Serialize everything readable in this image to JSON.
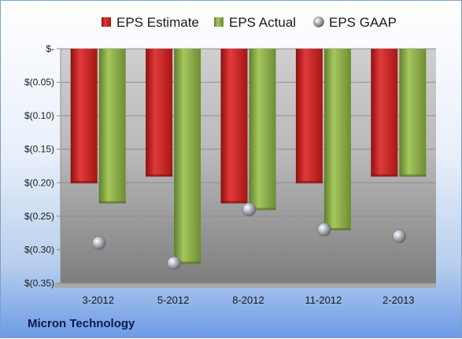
{
  "company": "Micron Technology",
  "chart_data": {
    "type": "bar",
    "categories": [
      "3-2012",
      "5-2012",
      "8-2012",
      "11-2012",
      "2-2013"
    ],
    "series": [
      {
        "name": "EPS Estimate",
        "kind": "bar",
        "color": "#cc2222",
        "values": [
          -0.2,
          -0.19,
          -0.23,
          -0.2,
          -0.19
        ]
      },
      {
        "name": "EPS Actual",
        "kind": "bar",
        "color": "#8cb04a",
        "values": [
          -0.23,
          -0.32,
          -0.24,
          -0.27,
          -0.19
        ]
      },
      {
        "name": "EPS GAAP",
        "kind": "marker",
        "color": "#9a9fa8",
        "values": [
          -0.29,
          -0.32,
          -0.24,
          -0.27,
          -0.28
        ]
      }
    ],
    "ylim": [
      -0.35,
      0
    ],
    "yticks": [
      {
        "value": 0,
        "label": "$-"
      },
      {
        "value": -0.05,
        "label": "$(0.05)"
      },
      {
        "value": -0.1,
        "label": "$(0.10)"
      },
      {
        "value": -0.15,
        "label": "$(0.15)"
      },
      {
        "value": -0.2,
        "label": "$(0.20)"
      },
      {
        "value": -0.25,
        "label": "$(0.25)"
      },
      {
        "value": -0.3,
        "label": "$(0.30)"
      },
      {
        "value": -0.35,
        "label": "$(0.35)"
      }
    ],
    "grid": true,
    "legend_position": "top"
  }
}
